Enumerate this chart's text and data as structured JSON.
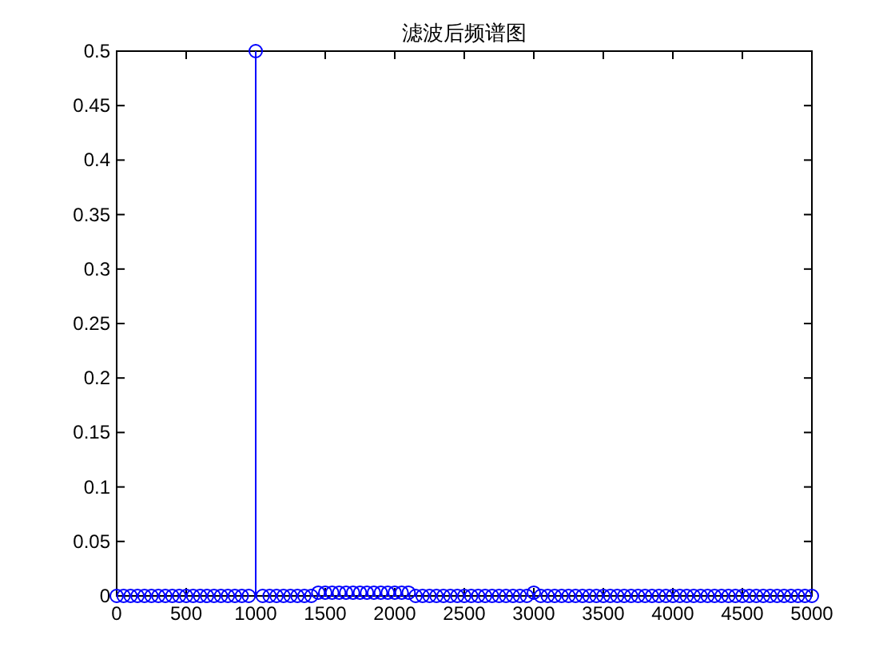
{
  "chart_data": {
    "type": "lollipop",
    "title": "滤波后频谱图",
    "x": [
      0,
      50,
      100,
      150,
      200,
      250,
      300,
      350,
      400,
      450,
      500,
      550,
      600,
      650,
      700,
      750,
      800,
      850,
      900,
      950,
      1000,
      1050,
      1100,
      1150,
      1200,
      1250,
      1300,
      1350,
      1400,
      1450,
      1500,
      1550,
      1600,
      1650,
      1700,
      1750,
      1800,
      1850,
      1900,
      1950,
      2000,
      2050,
      2100,
      2150,
      2200,
      2250,
      2300,
      2350,
      2400,
      2450,
      2500,
      2550,
      2600,
      2650,
      2700,
      2750,
      2800,
      2850,
      2900,
      2950,
      3000,
      3050,
      3100,
      3150,
      3200,
      3250,
      3300,
      3350,
      3400,
      3450,
      3500,
      3550,
      3600,
      3650,
      3700,
      3750,
      3800,
      3850,
      3900,
      3950,
      4000,
      4050,
      4100,
      4150,
      4200,
      4250,
      4300,
      4350,
      4400,
      4450,
      4500,
      4550,
      4600,
      4650,
      4700,
      4750,
      4800,
      4850,
      4900,
      4950,
      5000
    ],
    "values": [
      0,
      0,
      0,
      0,
      0,
      0,
      0,
      0,
      0,
      0,
      0,
      0,
      0,
      0,
      0,
      0,
      0,
      0,
      0,
      0,
      0.5,
      0,
      0,
      0,
      0,
      0,
      0,
      0,
      0,
      0.003,
      0.003,
      0.003,
      0.003,
      0.003,
      0.003,
      0.003,
      0.003,
      0.003,
      0.003,
      0.003,
      0.003,
      0.003,
      0.003,
      0,
      0,
      0,
      0,
      0,
      0,
      0,
      0,
      0,
      0,
      0,
      0,
      0,
      0,
      0,
      0,
      0,
      0.003,
      0,
      0,
      0,
      0,
      0,
      0,
      0,
      0,
      0,
      0,
      0,
      0,
      0,
      0,
      0,
      0,
      0,
      0,
      0,
      0,
      0,
      0,
      0,
      0,
      0,
      0,
      0,
      0,
      0,
      0,
      0,
      0,
      0,
      0,
      0,
      0,
      0,
      0,
      0,
      0
    ],
    "color": "#0000ff",
    "marker": "circle",
    "xlim": [
      0,
      5000
    ],
    "ylim": [
      0,
      0.5
    ],
    "xticks": [
      0,
      500,
      1000,
      1500,
      2000,
      2500,
      3000,
      3500,
      4000,
      4500,
      5000
    ],
    "yticks": [
      0,
      0.05,
      0.1,
      0.15,
      0.2,
      0.25,
      0.3,
      0.35,
      0.4,
      0.45,
      0.5
    ]
  }
}
